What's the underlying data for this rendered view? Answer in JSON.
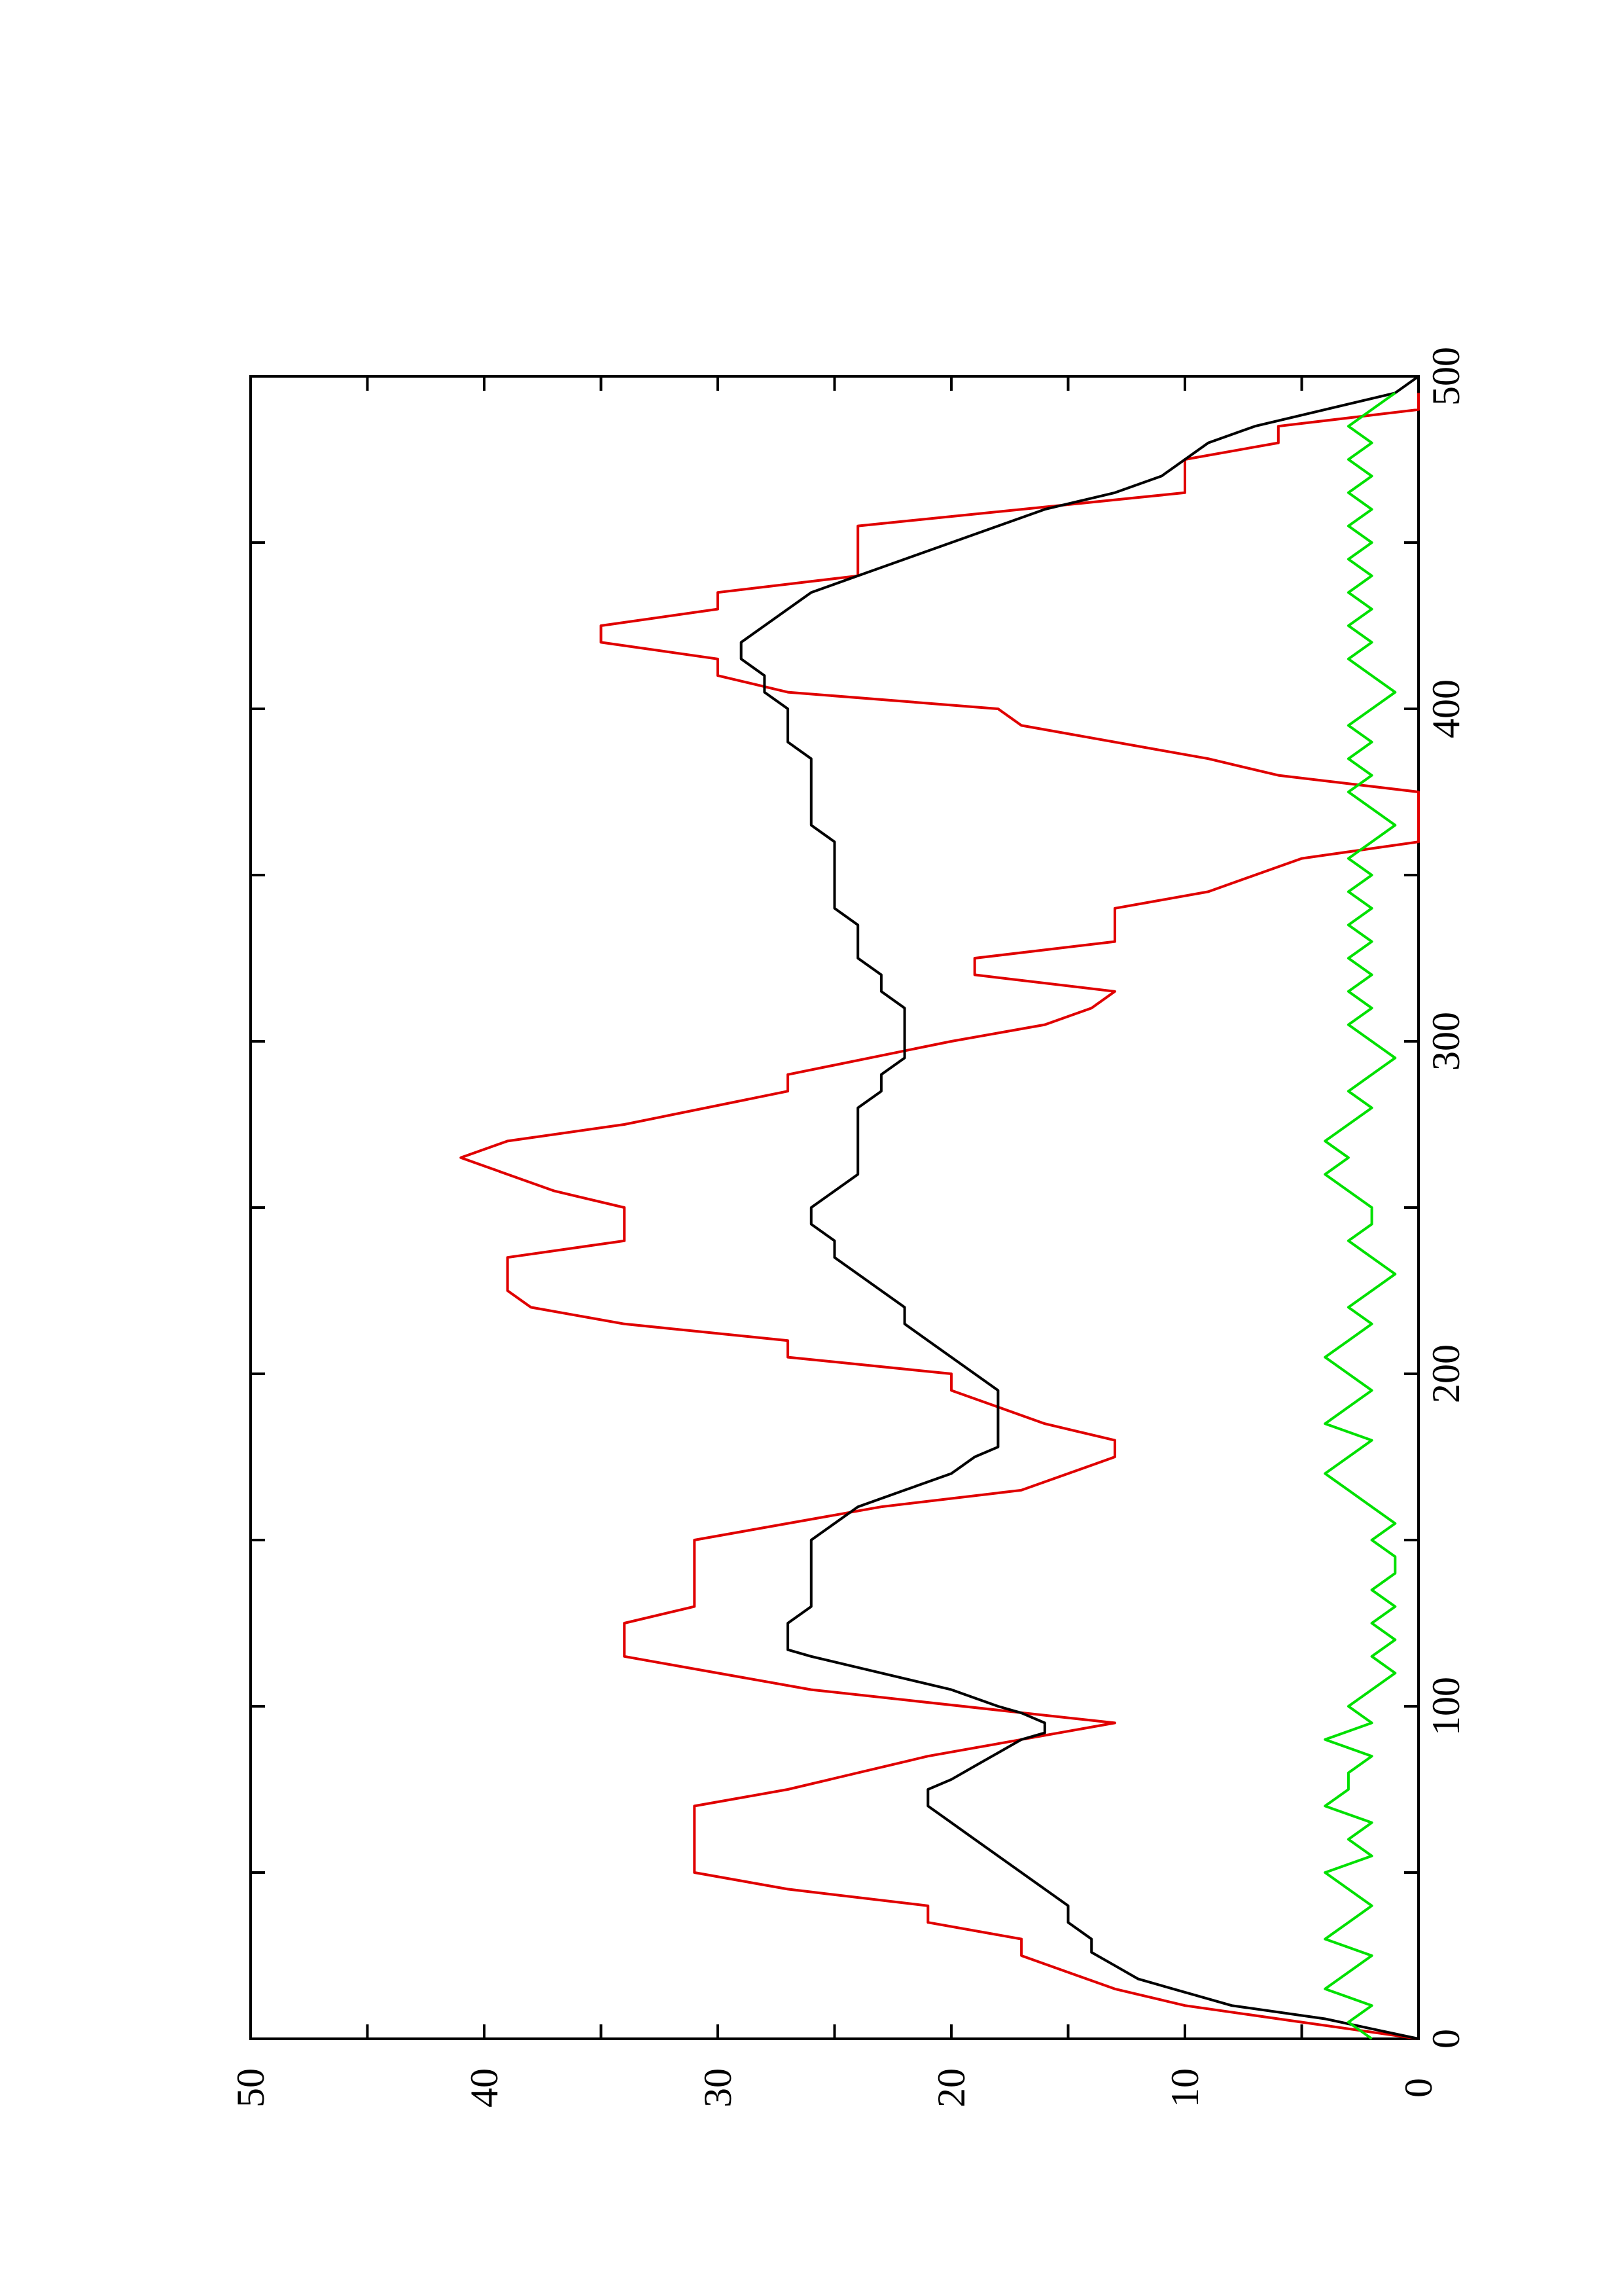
{
  "chart_data": {
    "type": "line",
    "orientation": "rotated 90° counter-clockwise (x axis runs bottom-to-top on the right edge, y axis runs right-to-left along the bottom)",
    "title": "",
    "xlabel": "",
    "ylabel": "",
    "xlim": [
      0,
      500
    ],
    "ylim": [
      0,
      50
    ],
    "x_ticks": [
      "0",
      "100",
      "200",
      "300",
      "400",
      "500"
    ],
    "y_ticks": [
      "0",
      "10",
      "20",
      "30",
      "40",
      "50"
    ],
    "grid": false,
    "legend": "none",
    "series": [
      {
        "color": "#e00000",
        "style": "stepped-line",
        "points": [
          [
            0,
            0
          ],
          [
            5,
            5
          ],
          [
            10,
            10
          ],
          [
            15,
            13
          ],
          [
            25,
            17
          ],
          [
            30,
            17
          ],
          [
            35,
            21
          ],
          [
            40,
            21
          ],
          [
            45,
            27
          ],
          [
            50,
            31
          ],
          [
            55,
            31
          ],
          [
            60,
            31
          ],
          [
            65,
            31
          ],
          [
            70,
            31
          ],
          [
            75,
            27
          ],
          [
            85,
            21
          ],
          [
            95,
            13
          ],
          [
            105,
            26
          ],
          [
            115,
            34
          ],
          [
            120,
            34
          ],
          [
            125,
            34
          ],
          [
            130,
            31
          ],
          [
            140,
            31
          ],
          [
            150,
            31
          ],
          [
            160,
            23
          ],
          [
            165,
            17
          ],
          [
            175,
            13
          ],
          [
            180,
            13
          ],
          [
            185,
            16
          ],
          [
            190,
            18
          ],
          [
            195,
            20
          ],
          [
            200,
            20
          ],
          [
            205,
            27
          ],
          [
            210,
            27
          ],
          [
            215,
            34
          ],
          [
            220,
            38
          ],
          [
            225,
            39
          ],
          [
            235,
            39
          ],
          [
            240,
            34
          ],
          [
            250,
            34
          ],
          [
            255,
            37
          ],
          [
            260,
            39
          ],
          [
            265,
            41
          ],
          [
            270,
            39
          ],
          [
            275,
            34
          ],
          [
            285,
            27
          ],
          [
            290,
            27
          ],
          [
            300,
            20
          ],
          [
            305,
            16
          ],
          [
            310,
            14
          ],
          [
            315,
            13
          ],
          [
            320,
            19
          ],
          [
            325,
            19
          ],
          [
            330,
            13
          ],
          [
            340,
            13
          ],
          [
            345,
            9
          ],
          [
            355,
            5
          ],
          [
            360,
            0
          ],
          [
            370,
            0
          ],
          [
            375,
            0
          ],
          [
            380,
            6
          ],
          [
            385,
            9
          ],
          [
            395,
            17
          ],
          [
            400,
            18
          ],
          [
            405,
            27
          ],
          [
            410,
            30
          ],
          [
            415,
            30
          ],
          [
            420,
            35
          ],
          [
            425,
            35
          ],
          [
            430,
            30
          ],
          [
            435,
            30
          ],
          [
            440,
            24
          ],
          [
            445,
            24
          ],
          [
            450,
            24
          ],
          [
            455,
            24
          ],
          [
            465,
            10
          ],
          [
            470,
            10
          ],
          [
            475,
            10
          ],
          [
            480,
            6
          ],
          [
            485,
            6
          ],
          [
            490,
            0
          ],
          [
            495,
            0
          ]
        ]
      },
      {
        "color": "#000000",
        "style": "line",
        "points": [
          [
            0,
            0
          ],
          [
            3,
            2
          ],
          [
            6,
            4
          ],
          [
            10,
            8
          ],
          [
            14,
            10
          ],
          [
            18,
            12
          ],
          [
            22,
            13
          ],
          [
            26,
            14
          ],
          [
            30,
            14
          ],
          [
            35,
            15
          ],
          [
            40,
            15
          ],
          [
            45,
            16
          ],
          [
            50,
            17
          ],
          [
            55,
            18
          ],
          [
            60,
            19
          ],
          [
            65,
            20
          ],
          [
            70,
            21
          ],
          [
            73,
            21
          ],
          [
            75,
            21
          ],
          [
            78,
            20
          ],
          [
            82,
            19
          ],
          [
            86,
            18
          ],
          [
            90,
            17
          ],
          [
            92,
            16
          ],
          [
            95,
            16
          ],
          [
            98,
            17
          ],
          [
            100,
            18
          ],
          [
            105,
            20
          ],
          [
            110,
            23
          ],
          [
            115,
            26
          ],
          [
            117,
            27
          ],
          [
            120,
            27
          ],
          [
            125,
            27
          ],
          [
            130,
            26
          ],
          [
            135,
            26
          ],
          [
            140,
            26
          ],
          [
            145,
            26
          ],
          [
            150,
            26
          ],
          [
            155,
            25
          ],
          [
            160,
            24
          ],
          [
            165,
            22
          ],
          [
            170,
            20
          ],
          [
            175,
            19
          ],
          [
            178,
            18
          ],
          [
            180,
            18
          ],
          [
            183,
            18
          ],
          [
            186,
            18
          ],
          [
            190,
            18
          ],
          [
            195,
            18
          ],
          [
            200,
            19
          ],
          [
            205,
            20
          ],
          [
            210,
            21
          ],
          [
            215,
            22
          ],
          [
            220,
            22
          ],
          [
            225,
            23
          ],
          [
            230,
            24
          ],
          [
            235,
            25
          ],
          [
            240,
            25
          ],
          [
            245,
            26
          ],
          [
            250,
            26
          ],
          [
            255,
            25
          ],
          [
            260,
            24
          ],
          [
            265,
            24
          ],
          [
            270,
            24
          ],
          [
            275,
            24
          ],
          [
            280,
            24
          ],
          [
            285,
            23
          ],
          [
            290,
            23
          ],
          [
            295,
            22
          ],
          [
            300,
            22
          ],
          [
            305,
            22
          ],
          [
            310,
            22
          ],
          [
            315,
            23
          ],
          [
            320,
            23
          ],
          [
            325,
            24
          ],
          [
            330,
            24
          ],
          [
            335,
            24
          ],
          [
            340,
            25
          ],
          [
            345,
            25
          ],
          [
            350,
            25
          ],
          [
            355,
            25
          ],
          [
            360,
            25
          ],
          [
            365,
            26
          ],
          [
            370,
            26
          ],
          [
            375,
            26
          ],
          [
            380,
            26
          ],
          [
            385,
            26
          ],
          [
            390,
            27
          ],
          [
            395,
            27
          ],
          [
            400,
            27
          ],
          [
            405,
            28
          ],
          [
            410,
            28
          ],
          [
            415,
            29
          ],
          [
            420,
            29
          ],
          [
            425,
            28
          ],
          [
            430,
            27
          ],
          [
            435,
            26
          ],
          [
            440,
            24
          ],
          [
            445,
            22
          ],
          [
            450,
            20
          ],
          [
            455,
            18
          ],
          [
            460,
            16
          ],
          [
            465,
            13
          ],
          [
            470,
            11
          ],
          [
            475,
            10
          ],
          [
            480,
            9
          ],
          [
            485,
            7
          ],
          [
            490,
            4
          ],
          [
            495,
            1
          ],
          [
            500,
            0
          ]
        ]
      },
      {
        "color": "#00e000",
        "style": "noisy-line",
        "points": [
          [
            0,
            2
          ],
          [
            5,
            3
          ],
          [
            10,
            2
          ],
          [
            15,
            4
          ],
          [
            20,
            3
          ],
          [
            25,
            2
          ],
          [
            30,
            4
          ],
          [
            35,
            3
          ],
          [
            40,
            2
          ],
          [
            45,
            3
          ],
          [
            50,
            4
          ],
          [
            55,
            2
          ],
          [
            60,
            3
          ],
          [
            65,
            2
          ],
          [
            70,
            4
          ],
          [
            75,
            3
          ],
          [
            80,
            3
          ],
          [
            85,
            2
          ],
          [
            90,
            4
          ],
          [
            95,
            2
          ],
          [
            100,
            3
          ],
          [
            105,
            2
          ],
          [
            110,
            1
          ],
          [
            115,
            2
          ],
          [
            120,
            1
          ],
          [
            125,
            2
          ],
          [
            130,
            1
          ],
          [
            135,
            2
          ],
          [
            140,
            1
          ],
          [
            145,
            1
          ],
          [
            150,
            2
          ],
          [
            155,
            1
          ],
          [
            160,
            2
          ],
          [
            165,
            3
          ],
          [
            170,
            4
          ],
          [
            175,
            3
          ],
          [
            180,
            2
          ],
          [
            185,
            4
          ],
          [
            190,
            3
          ],
          [
            195,
            2
          ],
          [
            200,
            3
          ],
          [
            205,
            4
          ],
          [
            210,
            3
          ],
          [
            215,
            2
          ],
          [
            220,
            3
          ],
          [
            225,
            2
          ],
          [
            230,
            1
          ],
          [
            235,
            2
          ],
          [
            240,
            3
          ],
          [
            245,
            2
          ],
          [
            250,
            2
          ],
          [
            255,
            3
          ],
          [
            260,
            4
          ],
          [
            265,
            3
          ],
          [
            270,
            4
          ],
          [
            275,
            3
          ],
          [
            280,
            2
          ],
          [
            285,
            3
          ],
          [
            290,
            2
          ],
          [
            295,
            1
          ],
          [
            300,
            2
          ],
          [
            305,
            3
          ],
          [
            310,
            2
          ],
          [
            315,
            3
          ],
          [
            320,
            2
          ],
          [
            325,
            3
          ],
          [
            330,
            2
          ],
          [
            335,
            3
          ],
          [
            340,
            2
          ],
          [
            345,
            3
          ],
          [
            350,
            2
          ],
          [
            355,
            3
          ],
          [
            360,
            2
          ],
          [
            365,
            1
          ],
          [
            370,
            2
          ],
          [
            375,
            3
          ],
          [
            380,
            2
          ],
          [
            385,
            3
          ],
          [
            390,
            2
          ],
          [
            395,
            3
          ],
          [
            400,
            2
          ],
          [
            405,
            1
          ],
          [
            410,
            2
          ],
          [
            415,
            3
          ],
          [
            420,
            2
          ],
          [
            425,
            3
          ],
          [
            430,
            2
          ],
          [
            435,
            3
          ],
          [
            440,
            2
          ],
          [
            445,
            3
          ],
          [
            450,
            2
          ],
          [
            455,
            3
          ],
          [
            460,
            2
          ],
          [
            465,
            3
          ],
          [
            470,
            2
          ],
          [
            475,
            3
          ],
          [
            480,
            2
          ],
          [
            485,
            3
          ],
          [
            490,
            2
          ],
          [
            495,
            1
          ]
        ]
      }
    ]
  }
}
